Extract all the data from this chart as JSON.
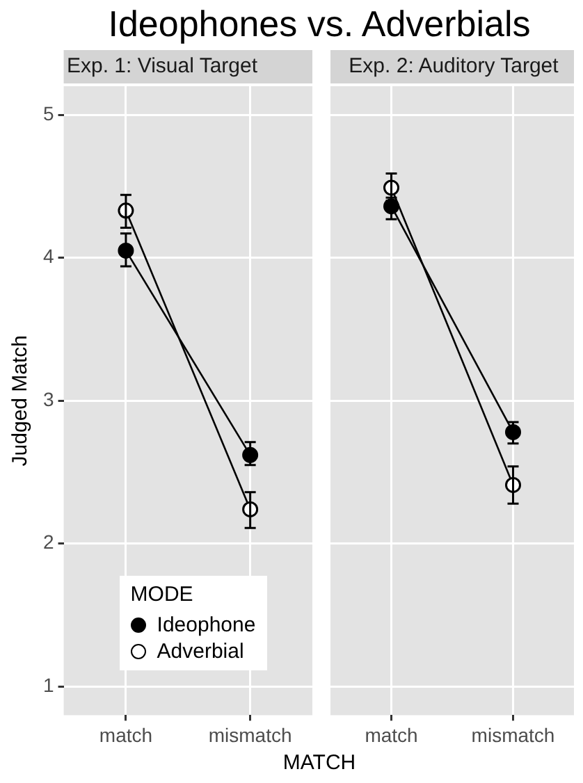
{
  "chart_data": [
    {
      "type": "line",
      "title": "Ideophones vs. Adverbials",
      "subtitle": "Exp. 1: Visual Target",
      "xlabel": "MATCH",
      "ylabel": "Judged Match",
      "legend_title": "MODE",
      "legend": "bottom left",
      "marker": "circle",
      "grid": true,
      "categories": [
        "match",
        "mismatch"
      ],
      "ylim": [
        0.8,
        5.2
      ],
      "yticks": [
        1,
        2,
        3,
        4,
        5
      ],
      "series": [
        {
          "name": "Ideophone",
          "color": "#000000",
          "values": [
            4.05,
            2.62
          ],
          "errors": [
            [
              3.94,
              4.17
            ],
            [
              2.55,
              2.71
            ]
          ]
        },
        {
          "name": "Adverbial",
          "color": "#ffffff",
          "values": [
            4.33,
            2.24
          ],
          "errors": [
            [
              4.21,
              4.44
            ],
            [
              2.11,
              2.36
            ]
          ]
        }
      ]
    },
    {
      "type": "line",
      "subtitle": "Exp. 2: Auditory Target",
      "marker": "circle",
      "grid": true,
      "tick_labels": "x",
      "categories": [
        "match",
        "mismatch"
      ],
      "ylim": [
        0.8,
        5.2
      ],
      "yticks": [
        1,
        2,
        3,
        4,
        5
      ],
      "series": [
        {
          "color": "#000000",
          "values": [
            4.36,
            2.78
          ],
          "errors": [
            [
              4.27,
              4.42
            ],
            [
              2.7,
              2.85
            ]
          ]
        },
        {
          "color": "#ffffff",
          "values": [
            4.49,
            2.41
          ],
          "errors": [
            [
              4.4,
              4.59
            ],
            [
              2.28,
              2.54
            ]
          ]
        }
      ]
    }
  ]
}
